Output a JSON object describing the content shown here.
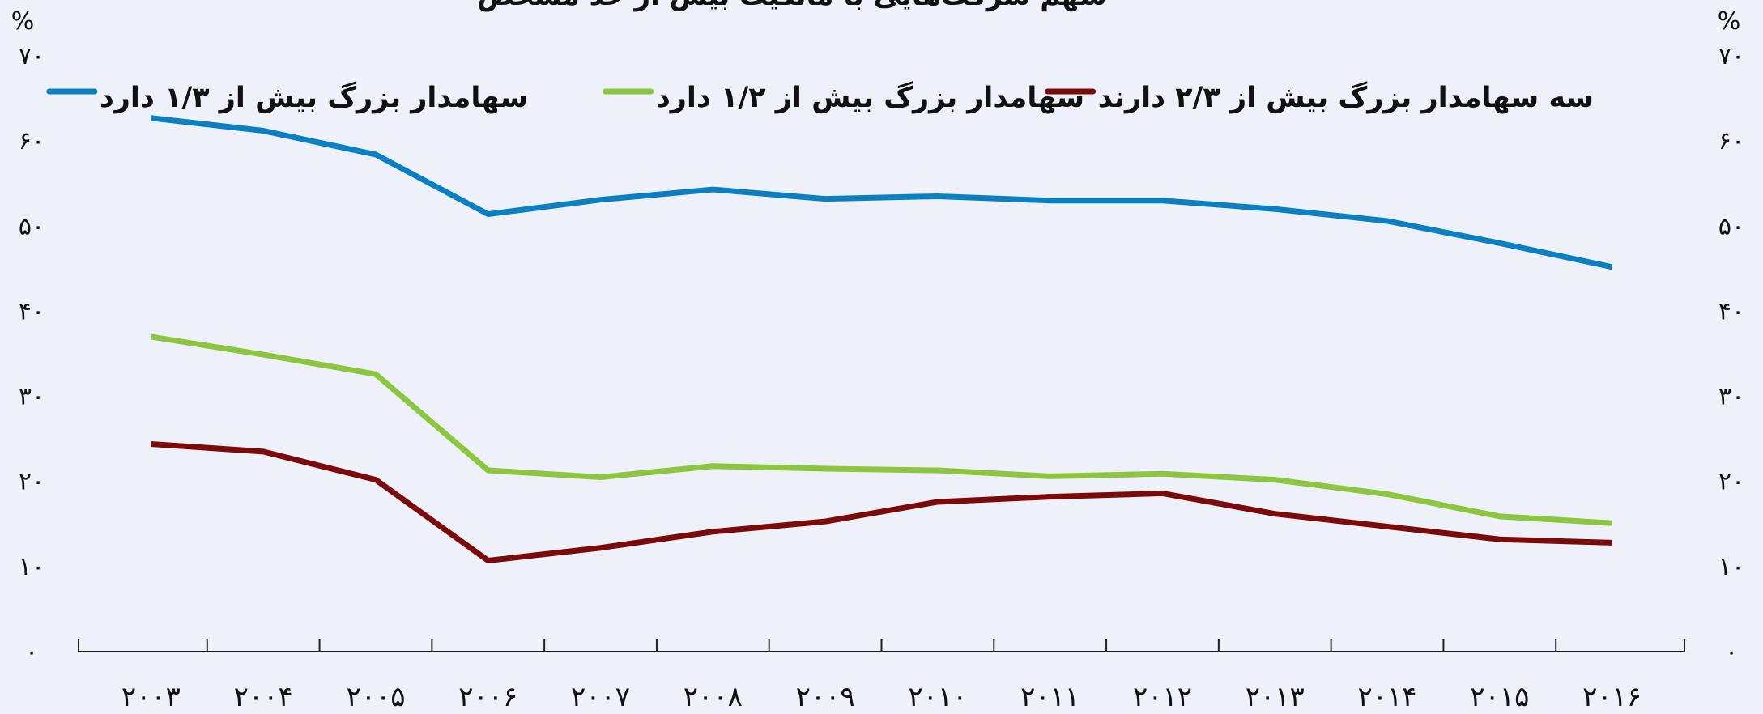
{
  "chart_data": {
    "type": "line",
    "title": "سهم شرکت‌هایی با مالکیت بیش از حد مشخص",
    "y_unit": "%",
    "categories": [
      "۲۰۰۳",
      "۲۰۰۴",
      "۲۰۰۵",
      "۲۰۰۶",
      "۲۰۰۷",
      "۲۰۰۸",
      "۲۰۰۹",
      "۲۰۱۰",
      "۲۰۱۱",
      "۲۰۱۲",
      "۲۰۱۳",
      "۲۰۱۴",
      "۲۰۱۵",
      "۲۰۱۶"
    ],
    "series": [
      {
        "name": "سهامدار بزرگ بیش از ۱/۳ دارد",
        "color": "#0a7fc2",
        "values": [
          62.7,
          61.2,
          58.4,
          51.4,
          53.1,
          54.3,
          53.2,
          53.5,
          53.0,
          53.0,
          52.0,
          50.6,
          48.0,
          45.2
        ]
      },
      {
        "name": "سهامدار بزرگ بیش از ۱/۲ دارد",
        "color": "#8cc63f",
        "values": [
          37.0,
          34.9,
          32.6,
          21.3,
          20.5,
          21.8,
          21.5,
          21.3,
          20.6,
          20.9,
          20.2,
          18.5,
          15.9,
          15.1
        ]
      },
      {
        "name": "سه سهامدار بزرگ بیش از ۲/۳ دارند",
        "color": "#7b0a0a",
        "values": [
          24.4,
          23.5,
          20.2,
          10.7,
          12.2,
          14.1,
          15.3,
          17.6,
          18.2,
          18.6,
          16.2,
          14.7,
          13.2,
          12.8
        ]
      }
    ],
    "ylim": [
      0,
      70
    ],
    "yticks": [
      {
        "value": 0,
        "label": "۰"
      },
      {
        "value": 10,
        "label": "۱۰"
      },
      {
        "value": 20,
        "label": "۲۰"
      },
      {
        "value": 30,
        "label": "۳۰"
      },
      {
        "value": 40,
        "label": "۴۰"
      },
      {
        "value": 50,
        "label": "۵۰"
      },
      {
        "value": 60,
        "label": "۶۰"
      },
      {
        "value": 70,
        "label": "۷۰"
      }
    ],
    "y2lim": [
      0,
      70
    ],
    "y2ticks": [
      {
        "value": 0,
        "label": "۰"
      },
      {
        "value": 10,
        "label": "۱۰"
      },
      {
        "value": 20,
        "label": "۲۰"
      },
      {
        "value": 30,
        "label": "۳۰"
      },
      {
        "value": 40,
        "label": "۴۰"
      },
      {
        "value": 50,
        "label": "۵۰"
      },
      {
        "value": 60,
        "label": "۶۰"
      },
      {
        "value": 70,
        "label": "۷۰"
      }
    ],
    "grid": false,
    "legend": "top"
  }
}
